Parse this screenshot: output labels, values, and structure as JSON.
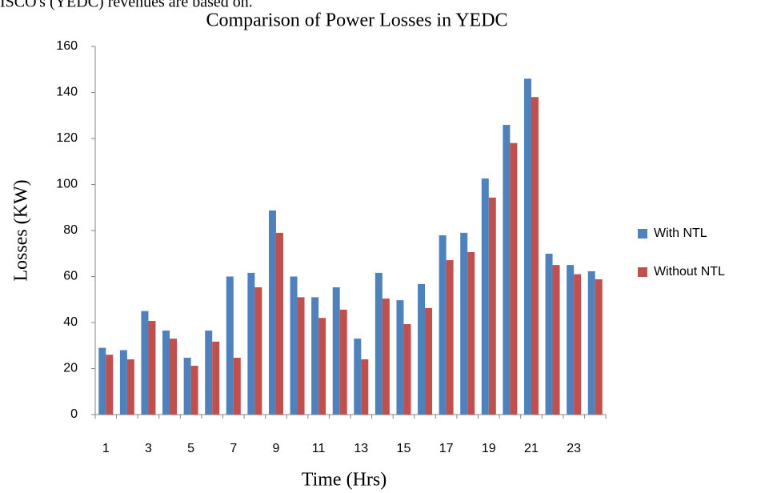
{
  "page_text": "ISCO's (YEDC) revenues are based on.",
  "chart_data": {
    "type": "bar",
    "title": "Comparison of Power Losses in YEDC",
    "x_label": "Time (Hrs)",
    "y_label": "Losses (KW)",
    "categories": [
      "1",
      null,
      "3",
      null,
      "5",
      null,
      "7",
      null,
      "9",
      null,
      "11",
      null,
      "13",
      null,
      "15",
      null,
      "17",
      null,
      "19",
      null,
      "21",
      null,
      "23",
      null
    ],
    "series": [
      {
        "name": "With NTL",
        "color": "#4f81bd",
        "values": [
          29,
          28,
          45,
          36.5,
          24.7,
          36.5,
          60,
          61.6,
          88.7,
          60,
          51,
          55.3,
          33,
          61.6,
          49.7,
          56.7,
          77.9,
          79,
          102.6,
          125.9,
          146,
          69.9,
          65,
          62.3
        ]
      },
      {
        "name": "Without NTL",
        "color": "#c0504d",
        "values": [
          26,
          24,
          40.7,
          33,
          21.2,
          31.7,
          24.7,
          55.3,
          79,
          51,
          42,
          45.6,
          24,
          50.4,
          39.3,
          46.3,
          67.1,
          70.6,
          94.3,
          118,
          138,
          65,
          61,
          58.8
        ]
      }
    ],
    "ylim": [
      0,
      160
    ],
    "yticks": [
      0,
      20,
      40,
      60,
      80,
      100,
      120,
      140,
      160
    ],
    "grid": false,
    "legend": "right"
  }
}
